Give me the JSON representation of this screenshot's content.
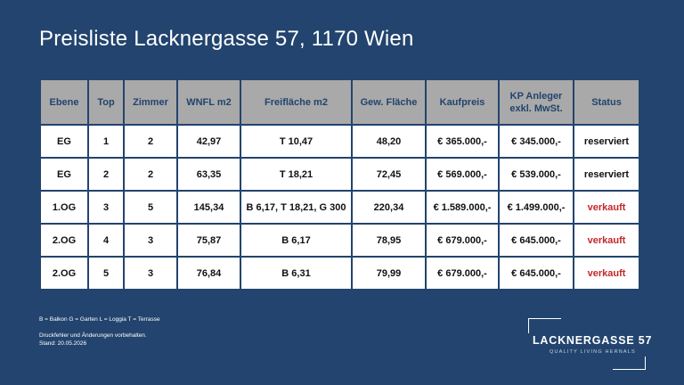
{
  "page": {
    "title": "Preisliste Lacknergasse 57, 1170 Wien"
  },
  "table": {
    "headers": [
      "Ebene",
      "Top",
      "Zimmer",
      "WNFL m2",
      "Freifläche m2",
      "Gew. Fläche",
      "Kaufpreis",
      "KP Anleger exkl. MwSt.",
      "Status"
    ],
    "rows": [
      [
        "EG",
        "1",
        "2",
        "42,97",
        "T 10,47",
        "48,20",
        "€ 365.000,-",
        "€ 345.000,-",
        "reserviert"
      ],
      [
        "EG",
        "2",
        "2",
        "63,35",
        "T 18,21",
        "72,45",
        "€ 569.000,-",
        "€ 539.000,-",
        "reserviert"
      ],
      [
        "1.OG",
        "3",
        "5",
        "145,34",
        "B 6,17, T 18,21, G 300",
        "220,34",
        "€ 1.589.000,-",
        "€ 1.499.000,-",
        "verkauft"
      ],
      [
        "2.OG",
        "4",
        "3",
        "75,87",
        "B 6,17",
        "78,95",
        "€ 679.000,-",
        "€ 645.000,-",
        "verkauft"
      ],
      [
        "2.OG",
        "5",
        "3",
        "76,84",
        "B 6,31",
        "79,99",
        "€ 679.000,-",
        "€ 645.000,-",
        "verkauft"
      ]
    ]
  },
  "footer": {
    "legend": "B = Balkon   G = Garten   L = Loggia   T = Terrasse",
    "disclaimer": "Druckfehler und Änderungen vorbehalten.",
    "date": "Stand: 20.05.2026"
  },
  "logo": {
    "brand": "LACKNERGASSE 57",
    "tagline": "QUALITY LIVING HERNALS"
  },
  "colors": {
    "background": "#22446e",
    "header_cell": "#a9a9a9",
    "sold_status": "#c0282d"
  }
}
